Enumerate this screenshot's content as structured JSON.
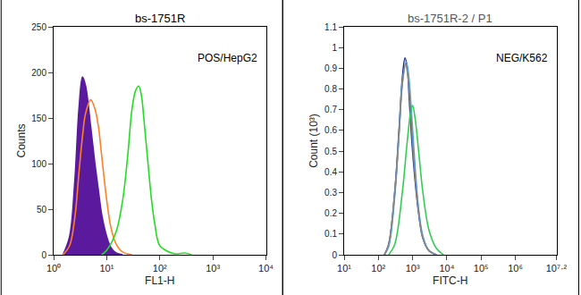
{
  "chart_data": [
    {
      "type": "line",
      "title": "bs-1751R",
      "annotations": [
        "POS/HepG2"
      ],
      "x_label": "FL1-H",
      "y_label": "Counts",
      "log": "x",
      "xlim": [
        1,
        10000
      ],
      "xticks": [
        {
          "value": 1,
          "label": "10⁰"
        },
        {
          "value": 10,
          "label": "10¹"
        },
        {
          "value": 100,
          "label": "10²"
        },
        {
          "value": 1000,
          "label": "10³"
        },
        {
          "value": 10000,
          "label": "10⁴"
        }
      ],
      "ylim": [
        0,
        250
      ],
      "yticks": [
        0,
        50,
        100,
        150,
        200,
        250
      ],
      "series": [
        {
          "color": "#5b1a9e",
          "marker": "filled",
          "x": [
            1.5,
            2,
            2.5,
            3,
            3.5,
            4,
            5,
            6,
            7,
            8,
            10,
            12,
            15,
            20
          ],
          "values": [
            0,
            20,
            80,
            160,
            195,
            185,
            140,
            100,
            70,
            45,
            20,
            8,
            2,
            0
          ]
        },
        {
          "color": "#ff7f27",
          "x": [
            1.5,
            2,
            2.5,
            3,
            3.5,
            4,
            5,
            6,
            7,
            8,
            10,
            12,
            15,
            20,
            30
          ],
          "values": [
            0,
            10,
            40,
            90,
            130,
            155,
            170,
            160,
            140,
            110,
            60,
            30,
            12,
            3,
            0
          ]
        },
        {
          "color": "#22dd22",
          "x": [
            8,
            10,
            15,
            20,
            25,
            30,
            35,
            40,
            45,
            50,
            60,
            70,
            80,
            100,
            150,
            200,
            300,
            400
          ],
          "values": [
            0,
            5,
            25,
            60,
            110,
            160,
            180,
            185,
            175,
            150,
            100,
            60,
            35,
            10,
            3,
            1,
            2,
            0
          ]
        }
      ]
    },
    {
      "type": "line",
      "title": "bs-1751R-2 / P1",
      "annotations": [
        "NEG/K562"
      ],
      "x_label": "FITC-H",
      "y_label": "Count (10³)",
      "log": "x",
      "xlim": [
        10,
        15848932
      ],
      "xticks": [
        {
          "value": 10,
          "label": "10¹"
        },
        {
          "value": 100,
          "label": "10²"
        },
        {
          "value": 1000,
          "label": "10³"
        },
        {
          "value": 10000,
          "label": "10⁴"
        },
        {
          "value": 100000,
          "label": "10⁵"
        },
        {
          "value": 1000000,
          "label": "10⁶"
        },
        {
          "value": 15848932,
          "label": "10⁷·²"
        }
      ],
      "ylim": [
        0,
        1.1
      ],
      "yticks": [
        0,
        0.1,
        0.2,
        0.3,
        0.4,
        0.5,
        0.6,
        0.7,
        0.8,
        0.9,
        1,
        1.1
      ],
      "series": [
        {
          "color": "#1f2f8f",
          "x": [
            150,
            200,
            300,
            400,
            500,
            600,
            700,
            800,
            1000,
            1500,
            2000,
            3000,
            5000
          ],
          "values": [
            0,
            0.05,
            0.3,
            0.6,
            0.85,
            0.95,
            0.9,
            0.75,
            0.5,
            0.2,
            0.08,
            0.02,
            0
          ]
        },
        {
          "color": "#4aa8e0",
          "x": [
            150,
            200,
            300,
            400,
            500,
            650,
            750,
            900,
            1100,
            1500,
            2000,
            3000,
            5000
          ],
          "values": [
            0,
            0.04,
            0.28,
            0.58,
            0.83,
            0.93,
            0.88,
            0.72,
            0.5,
            0.22,
            0.09,
            0.02,
            0
          ]
        },
        {
          "color": "#888888",
          "x": [
            150,
            200,
            300,
            400,
            500,
            620,
            720,
            850,
            1050,
            1500,
            2000,
            3000,
            5000
          ],
          "values": [
            0,
            0.05,
            0.3,
            0.58,
            0.82,
            0.92,
            0.87,
            0.73,
            0.49,
            0.21,
            0.08,
            0.02,
            0
          ]
        },
        {
          "color": "#33cc55",
          "x": [
            200,
            300,
            500,
            700,
            900,
            1000,
            1200,
            1500,
            2000,
            3000,
            5000,
            8000
          ],
          "values": [
            0,
            0.05,
            0.3,
            0.55,
            0.7,
            0.72,
            0.65,
            0.5,
            0.3,
            0.12,
            0.03,
            0
          ]
        }
      ]
    }
  ]
}
